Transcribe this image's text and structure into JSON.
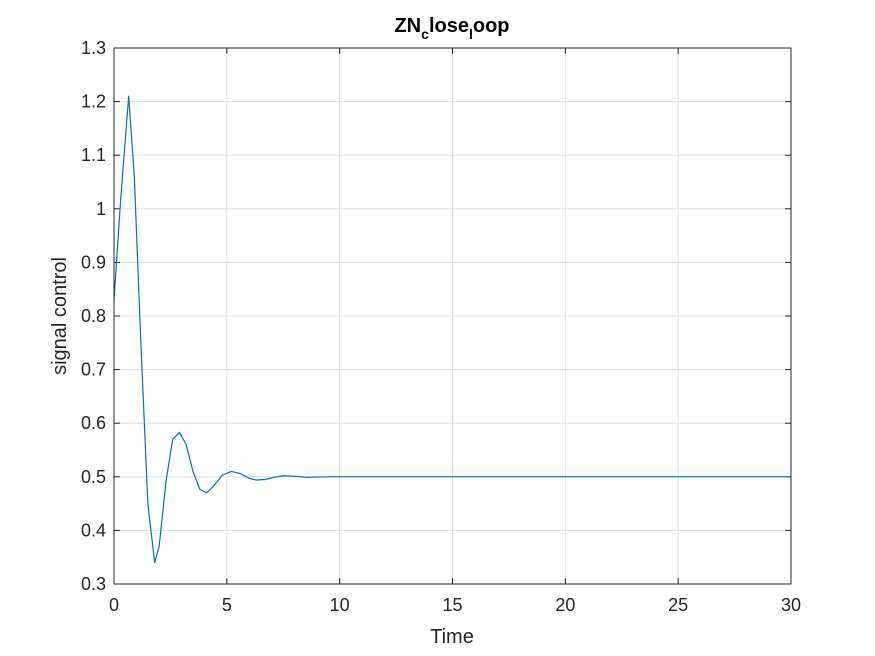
{
  "chart_data": {
    "type": "line",
    "title_parts": [
      {
        "text": "ZN",
        "sub": false
      },
      {
        "text": "c",
        "sub": true
      },
      {
        "text": "lose",
        "sub": false
      },
      {
        "text": "l",
        "sub": true
      },
      {
        "text": "oop",
        "sub": false
      }
    ],
    "xlabel": "Time",
    "ylabel": "signal control",
    "xlim": [
      0,
      30
    ],
    "ylim": [
      0.3,
      1.3
    ],
    "xticks": [
      0,
      5,
      10,
      15,
      20,
      25,
      30
    ],
    "yticks": [
      0.3,
      0.4,
      0.5,
      0.6,
      0.7,
      0.8,
      0.9,
      1,
      1.1,
      1.2,
      1.3
    ],
    "grid": true,
    "series": [
      {
        "color": "#0072BD",
        "x": [
          0,
          0.3,
          0.65,
          0.9,
          1.2,
          1.5,
          1.8,
          2.0,
          2.3,
          2.6,
          2.9,
          3.2,
          3.5,
          3.8,
          4.1,
          4.4,
          4.8,
          5.2,
          5.6,
          6.0,
          6.3,
          6.7,
          7.1,
          7.5,
          8.0,
          8.5,
          9.0,
          9.5,
          10,
          12,
          15,
          20,
          25,
          30
        ],
        "y": [
          0.83,
          1.02,
          1.21,
          1.06,
          0.74,
          0.45,
          0.34,
          0.37,
          0.49,
          0.57,
          0.583,
          0.56,
          0.51,
          0.477,
          0.47,
          0.482,
          0.503,
          0.51,
          0.506,
          0.497,
          0.494,
          0.495,
          0.499,
          0.502,
          0.501,
          0.499,
          0.4995,
          0.5,
          0.5,
          0.5,
          0.5,
          0.5,
          0.5,
          0.5
        ]
      }
    ]
  }
}
